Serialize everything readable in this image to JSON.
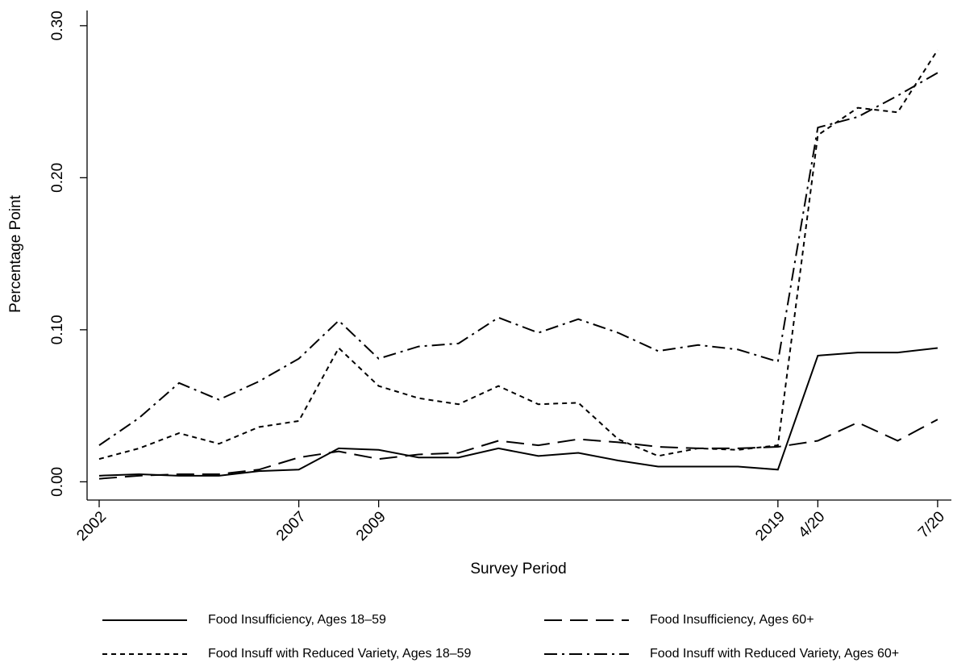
{
  "chart_data": {
    "type": "line",
    "categories": [
      "2002",
      null,
      null,
      null,
      null,
      "2007",
      null,
      "2009",
      null,
      null,
      null,
      null,
      null,
      null,
      null,
      null,
      null,
      "2019",
      "4/20",
      null,
      null,
      "7/20"
    ],
    "series": [
      {
        "name": "Food Insufficiency, Ages 18–59",
        "color": "#000000",
        "dash": "solid",
        "values": [
          0.004,
          0.005,
          0.004,
          0.004,
          0.007,
          0.008,
          0.022,
          0.021,
          0.016,
          0.016,
          0.022,
          0.017,
          0.019,
          0.014,
          0.01,
          0.01,
          0.01,
          0.008,
          0.083,
          0.085,
          0.085,
          0.088
        ]
      },
      {
        "name": "Food Insufficiency, Ages 60+",
        "color": "#000000",
        "dash": "longdash",
        "values": [
          0.002,
          0.004,
          0.005,
          0.005,
          0.008,
          0.016,
          0.02,
          0.015,
          0.018,
          0.019,
          0.027,
          0.024,
          0.028,
          0.026,
          0.023,
          0.022,
          0.022,
          0.023,
          0.027,
          0.039,
          0.027,
          0.041
        ]
      },
      {
        "name": "Food Insuff with Reduced Variety, Ages 18–59",
        "color": "#000000",
        "dash": "shortdash",
        "values": [
          0.015,
          0.022,
          0.032,
          0.025,
          0.036,
          0.04,
          0.088,
          0.063,
          0.055,
          0.051,
          0.063,
          0.051,
          0.052,
          0.028,
          0.017,
          0.022,
          0.021,
          0.024,
          0.228,
          0.246,
          0.243,
          0.284
        ]
      },
      {
        "name": "Food Insuff with Reduced Variety, Ages 60+",
        "color": "#000000",
        "dash": "dashdot",
        "values": [
          0.024,
          0.042,
          0.065,
          0.054,
          0.066,
          0.081,
          0.106,
          0.081,
          0.089,
          0.091,
          0.108,
          0.098,
          0.107,
          0.098,
          0.086,
          0.09,
          0.087,
          0.079,
          0.233,
          0.24,
          0.254,
          0.269
        ]
      }
    ],
    "x_label": "Survey Period",
    "y_label": "Percentage Point",
    "ylim": [
      -0.012,
      0.31
    ],
    "yticks": [
      {
        "value": 0,
        "label": "0.00"
      },
      {
        "value": 0.1,
        "label": "0.10"
      },
      {
        "value": 0.2,
        "label": "0.20"
      },
      {
        "value": 0.3,
        "label": "0.30"
      }
    ],
    "grid": false,
    "legend": "bottom"
  }
}
